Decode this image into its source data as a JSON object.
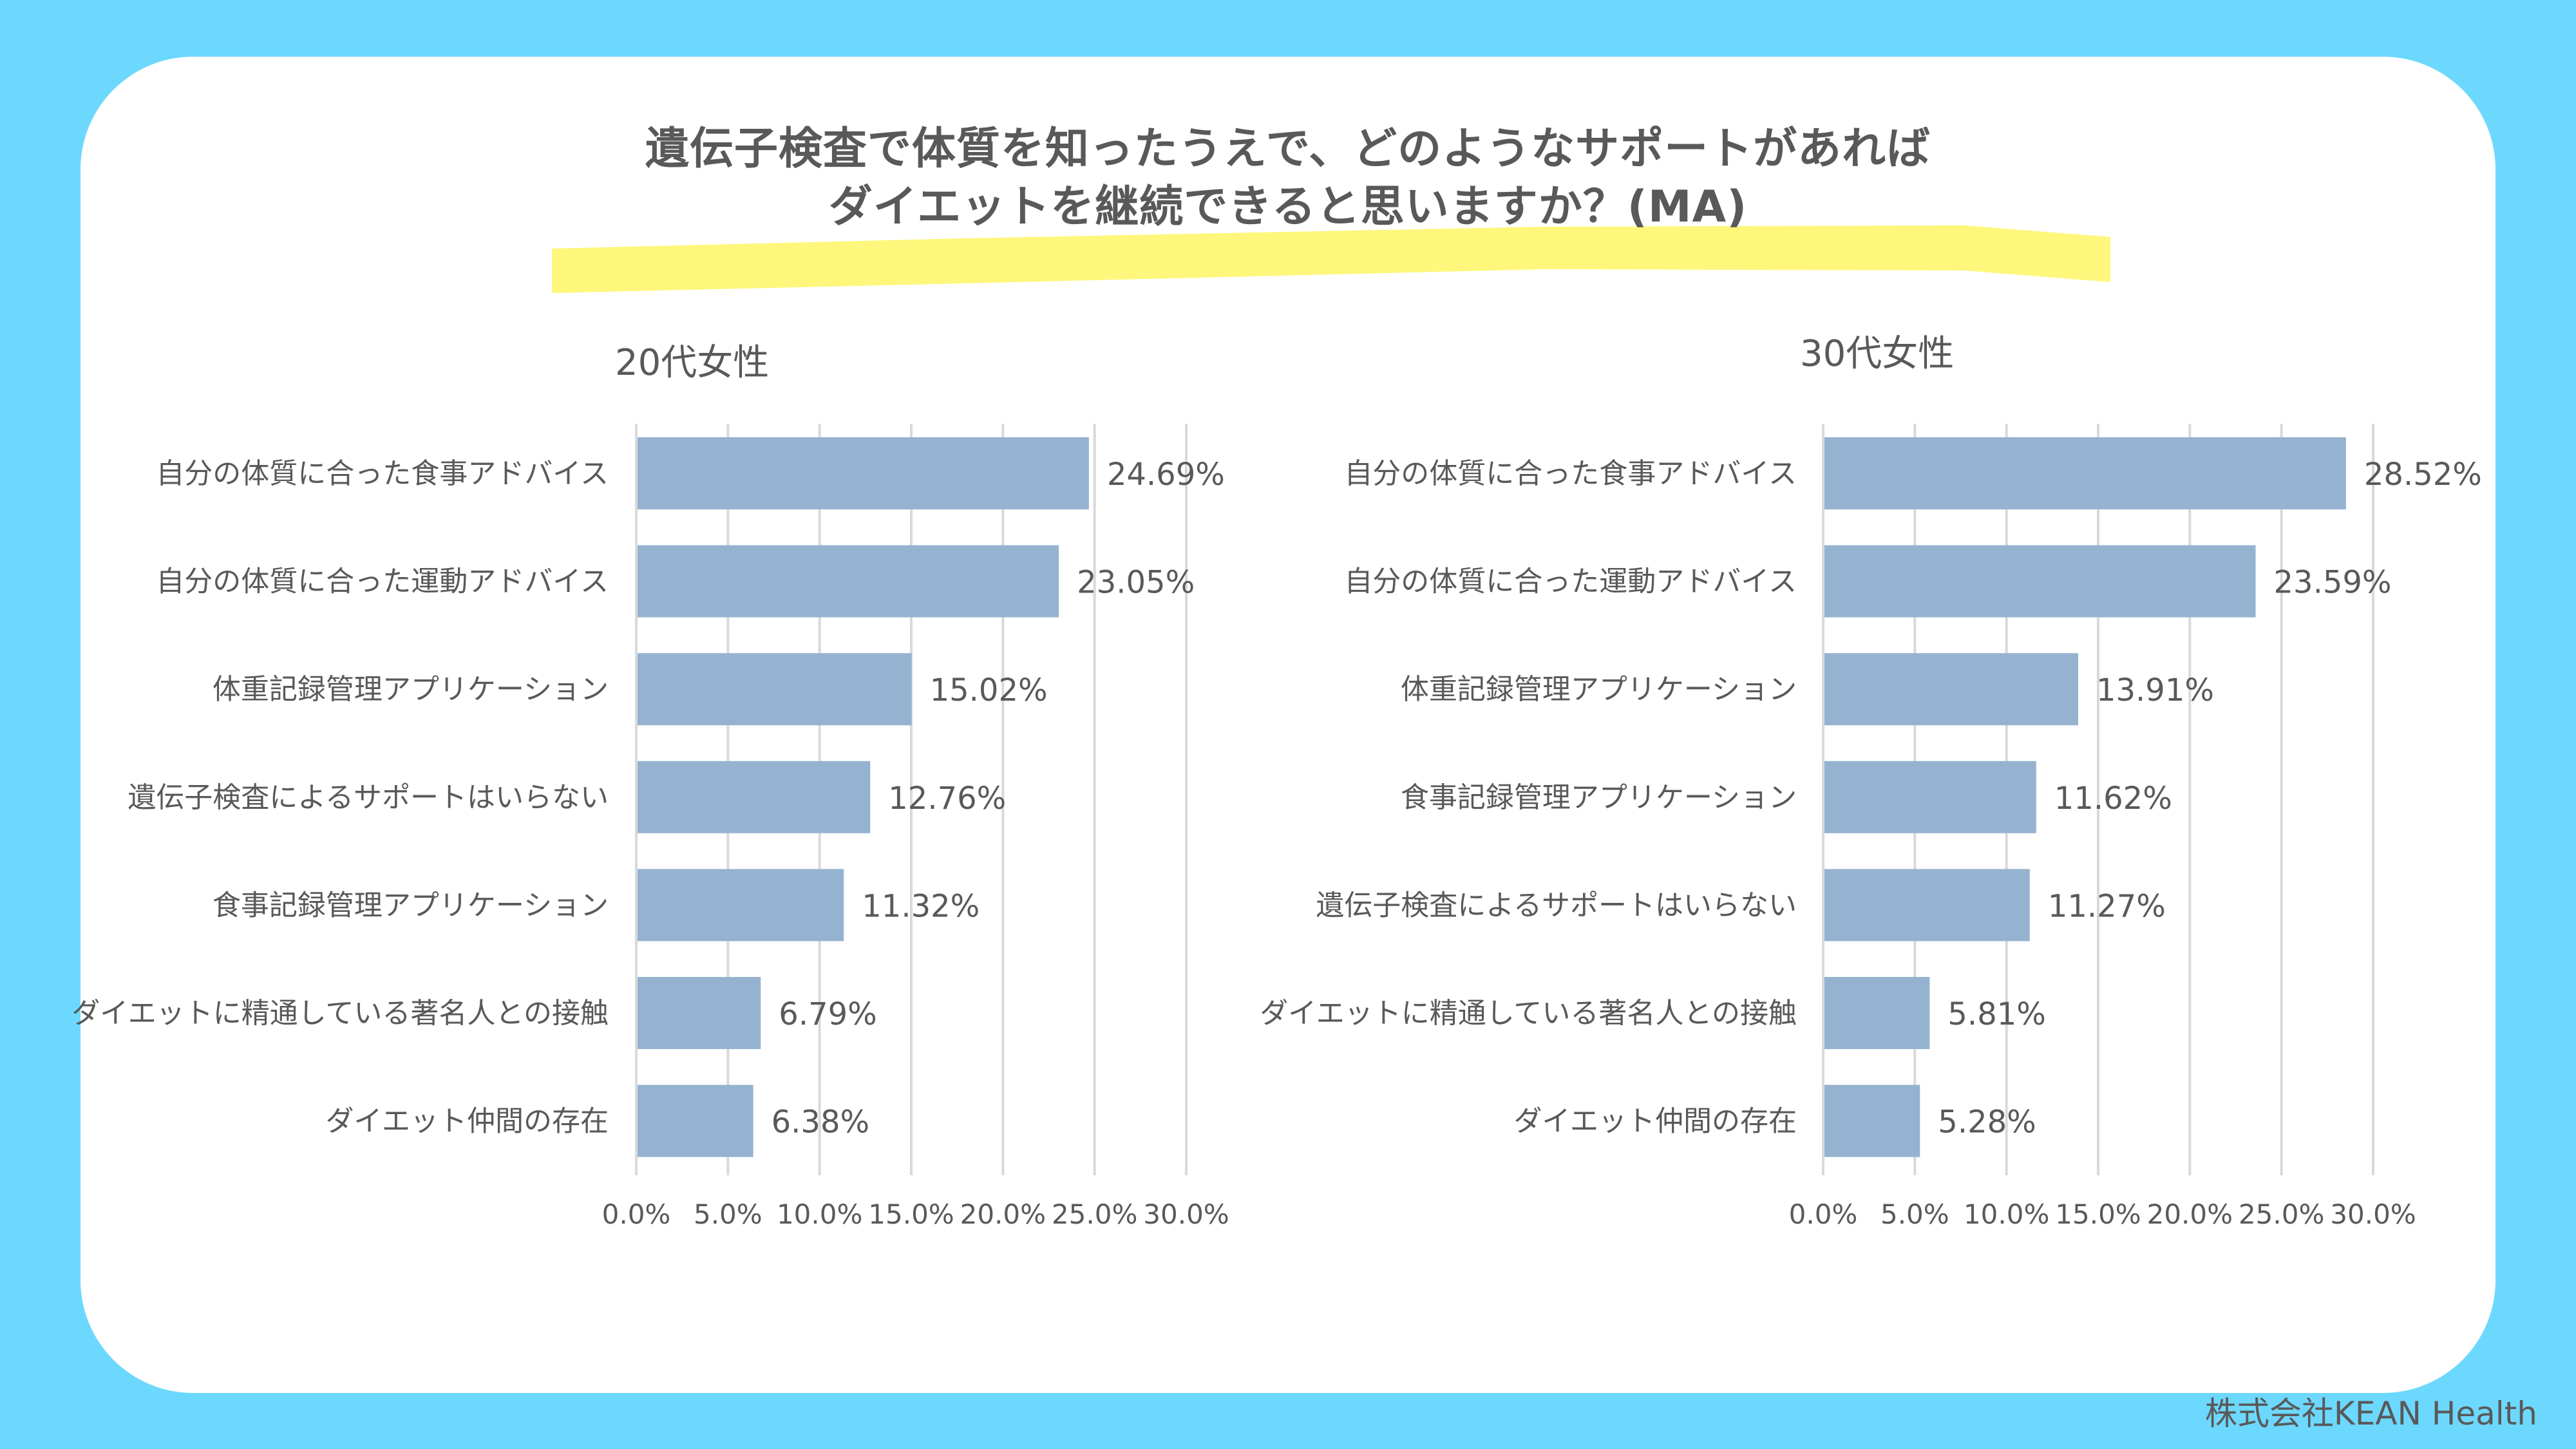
{
  "title": {
    "line1": "遺伝子検査で体質を知ったうえで、どのようなサポートがあれば",
    "line2": "ダイエットを継続できると思いますか？(MA)"
  },
  "colors": {
    "background": "#6DD8FD",
    "card": "#FFFFFF",
    "highlight": "#FEF77C",
    "bar": "#95B3D0",
    "gridline": "#D9D9D9",
    "text": "#595959"
  },
  "footer": "株式会社KEAN Health",
  "chart_data": [
    {
      "type": "bar",
      "orientation": "horizontal",
      "title": "20代女性",
      "categories": [
        "自分の体質に合った食事アドバイス",
        "自分の体質に合った運動アドバイス",
        "体重記録管理アプリケーション",
        "遺伝子検査によるサポートはいらない",
        "食事記録管理アプリケーション",
        "ダイエットに精通している著名人との接触",
        "ダイエット仲間の存在"
      ],
      "values": [
        24.69,
        23.05,
        15.02,
        12.76,
        11.32,
        6.79,
        6.38
      ],
      "data_labels": [
        "24.69%",
        "23.05%",
        "15.02%",
        "12.76%",
        "11.32%",
        "6.79%",
        "6.38%"
      ],
      "xlim": [
        0,
        30
      ],
      "xticks": [
        "0.0%",
        "5.0%",
        "10.0%",
        "15.0%",
        "20.0%",
        "25.0%",
        "30.0%"
      ],
      "grid": true,
      "xlabel": "",
      "ylabel": ""
    },
    {
      "type": "bar",
      "orientation": "horizontal",
      "title": "30代女性",
      "categories": [
        "自分の体質に合った食事アドバイス",
        "自分の体質に合った運動アドバイス",
        "体重記録管理アプリケーション",
        "食事記録管理アプリケーション",
        "遺伝子検査によるサポートはいらない",
        "ダイエットに精通している著名人との接触",
        "ダイエット仲間の存在"
      ],
      "values": [
        28.52,
        23.59,
        13.91,
        11.62,
        11.27,
        5.81,
        5.28
      ],
      "data_labels": [
        "28.52%",
        "23.59%",
        "13.91%",
        "11.62%",
        "11.27%",
        "5.81%",
        "5.28%"
      ],
      "xlim": [
        0,
        30
      ],
      "xticks": [
        "0.0%",
        "5.0%",
        "10.0%",
        "15.0%",
        "20.0%",
        "25.0%",
        "30.0%"
      ],
      "grid": true,
      "xlabel": "",
      "ylabel": ""
    }
  ]
}
